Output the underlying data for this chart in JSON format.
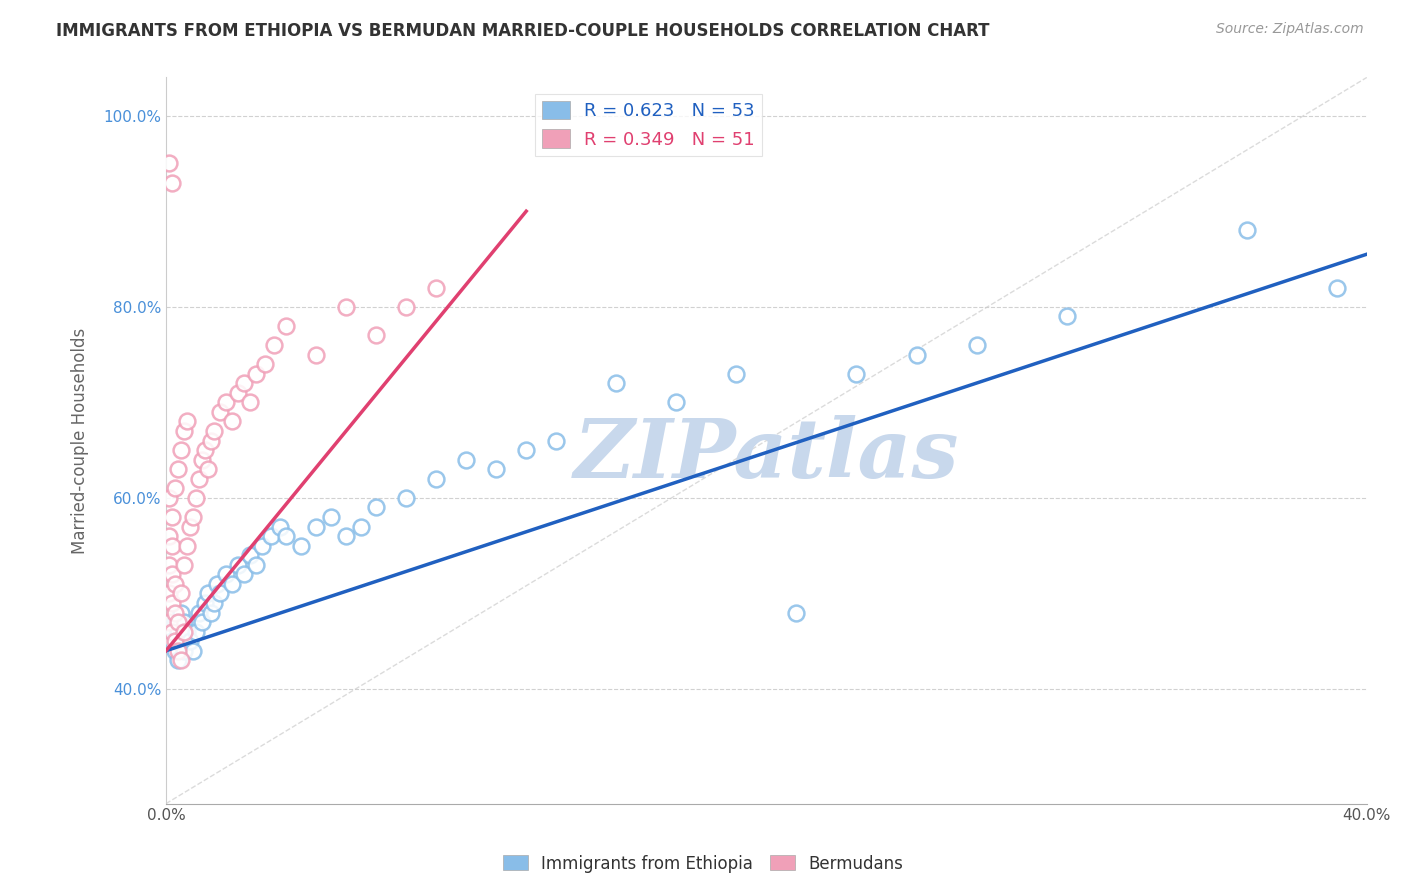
{
  "title": "IMMIGRANTS FROM ETHIOPIA VS BERMUDAN MARRIED-COUPLE HOUSEHOLDS CORRELATION CHART",
  "source": "Source: ZipAtlas.com",
  "xlabel_blue": "Immigrants from Ethiopia",
  "xlabel_pink": "Bermudans",
  "ylabel": "Married-couple Households",
  "legend_blue_r": "R = 0.623",
  "legend_blue_n": "N = 53",
  "legend_pink_r": "R = 0.349",
  "legend_pink_n": "N = 51",
  "xlim": [
    0.0,
    0.4
  ],
  "ylim": [
    0.28,
    1.04
  ],
  "yticks": [
    0.4,
    0.6,
    0.8,
    1.0
  ],
  "ytick_labels": [
    "40.0%",
    "60.0%",
    "80.0%",
    "100.0%"
  ],
  "xticks": [
    0.0,
    0.05,
    0.1,
    0.15,
    0.2,
    0.25,
    0.3,
    0.35,
    0.4
  ],
  "xtick_labels": [
    "0.0%",
    "",
    "",
    "",
    "",
    "",
    "",
    "",
    "40.0%"
  ],
  "color_blue": "#89bde8",
  "color_pink": "#f0a0b8",
  "line_blue": "#2060c0",
  "line_pink": "#e04070",
  "ref_line_color": "#cccccc",
  "watermark": "ZIPatlas",
  "watermark_color": "#c8d8ec",
  "blue_line_x0": 0.0,
  "blue_line_y0": 0.44,
  "blue_line_x1": 0.4,
  "blue_line_y1": 0.855,
  "pink_line_x0": 0.0,
  "pink_line_y0": 0.44,
  "pink_line_x1": 0.12,
  "pink_line_y1": 0.9,
  "blue_points_x": [
    0.002,
    0.003,
    0.003,
    0.004,
    0.004,
    0.005,
    0.005,
    0.006,
    0.006,
    0.007,
    0.008,
    0.009,
    0.01,
    0.011,
    0.012,
    0.013,
    0.014,
    0.015,
    0.016,
    0.017,
    0.018,
    0.02,
    0.022,
    0.024,
    0.026,
    0.028,
    0.03,
    0.032,
    0.035,
    0.038,
    0.04,
    0.045,
    0.05,
    0.055,
    0.06,
    0.065,
    0.07,
    0.08,
    0.09,
    0.1,
    0.11,
    0.12,
    0.13,
    0.15,
    0.17,
    0.19,
    0.21,
    0.23,
    0.25,
    0.27,
    0.3,
    0.36,
    0.39
  ],
  "blue_points_y": [
    0.45,
    0.44,
    0.47,
    0.43,
    0.46,
    0.45,
    0.48,
    0.44,
    0.47,
    0.46,
    0.45,
    0.44,
    0.46,
    0.48,
    0.47,
    0.49,
    0.5,
    0.48,
    0.49,
    0.51,
    0.5,
    0.52,
    0.51,
    0.53,
    0.52,
    0.54,
    0.53,
    0.55,
    0.56,
    0.57,
    0.56,
    0.55,
    0.57,
    0.58,
    0.56,
    0.57,
    0.59,
    0.6,
    0.62,
    0.64,
    0.63,
    0.65,
    0.66,
    0.72,
    0.7,
    0.73,
    0.48,
    0.73,
    0.75,
    0.76,
    0.79,
    0.88,
    0.82
  ],
  "pink_points_x": [
    0.001,
    0.001,
    0.001,
    0.001,
    0.001,
    0.002,
    0.002,
    0.002,
    0.002,
    0.002,
    0.003,
    0.003,
    0.003,
    0.003,
    0.004,
    0.004,
    0.004,
    0.005,
    0.005,
    0.005,
    0.006,
    0.006,
    0.006,
    0.007,
    0.007,
    0.008,
    0.009,
    0.01,
    0.011,
    0.012,
    0.013,
    0.014,
    0.015,
    0.016,
    0.018,
    0.02,
    0.022,
    0.024,
    0.026,
    0.028,
    0.03,
    0.033,
    0.036,
    0.04,
    0.05,
    0.06,
    0.07,
    0.08,
    0.09,
    0.001,
    0.002
  ],
  "pink_points_y": [
    0.47,
    0.5,
    0.53,
    0.56,
    0.6,
    0.46,
    0.49,
    0.52,
    0.55,
    0.58,
    0.45,
    0.48,
    0.51,
    0.61,
    0.44,
    0.47,
    0.63,
    0.43,
    0.5,
    0.65,
    0.46,
    0.53,
    0.67,
    0.55,
    0.68,
    0.57,
    0.58,
    0.6,
    0.62,
    0.64,
    0.65,
    0.63,
    0.66,
    0.67,
    0.69,
    0.7,
    0.68,
    0.71,
    0.72,
    0.7,
    0.73,
    0.74,
    0.76,
    0.78,
    0.75,
    0.8,
    0.77,
    0.8,
    0.82,
    0.95,
    0.93
  ]
}
